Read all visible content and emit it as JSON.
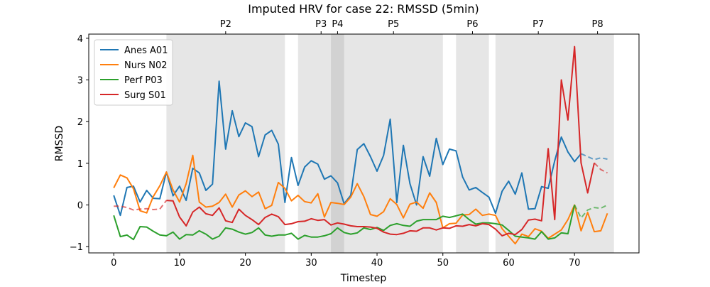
{
  "chart_data": {
    "type": "line",
    "title": "Imputed HRV for case 22: RMSSD (5min)",
    "xlabel": "Timestep",
    "ylabel": "RMSSD",
    "xlim": [
      -3.8,
      79.8
    ],
    "ylim": [
      -1.15,
      4.1
    ],
    "xticks": [
      0,
      10,
      20,
      30,
      40,
      50,
      60,
      70
    ],
    "yticks": [
      -1,
      0,
      1,
      2,
      3,
      4
    ],
    "grid": false,
    "legend_position": "upper-left",
    "phases": [
      {
        "label": "P2",
        "start": 8,
        "end": 26
      },
      {
        "label": "P3",
        "start": 28,
        "end": 35
      },
      {
        "label": "P4",
        "start": 33,
        "end": 35
      },
      {
        "label": "P5",
        "start": 35,
        "end": 50
      },
      {
        "label": "P6",
        "start": 52,
        "end": 57
      },
      {
        "label": "P7",
        "start": 58,
        "end": 71
      },
      {
        "label": "P8",
        "start": 71,
        "end": 76
      }
    ],
    "series": [
      {
        "name": "Anes A01",
        "color": "#1f77b4",
        "x": [
          0,
          1,
          2,
          3,
          4,
          5,
          6,
          7,
          8,
          9,
          10,
          11,
          12,
          13,
          14,
          15,
          16,
          17,
          18,
          19,
          20,
          21,
          22,
          23,
          24,
          25,
          26,
          27,
          28,
          29,
          30,
          31,
          32,
          33,
          34,
          35,
          36,
          37,
          38,
          39,
          40,
          41,
          42,
          43,
          44,
          45,
          46,
          47,
          48,
          49,
          50,
          51,
          52,
          53,
          54,
          55,
          56,
          57,
          58,
          59,
          60,
          61,
          62,
          63,
          64,
          65,
          66,
          67,
          68,
          69,
          70,
          71
        ],
        "values": [
          0.23,
          -0.25,
          0.42,
          0.45,
          0.07,
          0.35,
          0.16,
          0.15,
          0.79,
          0.22,
          0.45,
          0.11,
          0.88,
          0.77,
          0.35,
          0.5,
          2.97,
          1.34,
          2.26,
          1.64,
          1.97,
          1.88,
          1.16,
          1.68,
          1.79,
          1.46,
          0.06,
          1.14,
          0.47,
          0.91,
          1.06,
          0.98,
          0.62,
          0.7,
          0.53,
          0.03,
          0.23,
          1.33,
          1.47,
          1.16,
          0.81,
          1.19,
          2.06,
          0.06,
          1.43,
          0.51,
          0.0,
          1.16,
          0.69,
          1.6,
          0.97,
          1.34,
          1.3,
          0.67,
          0.36,
          0.42,
          0.3,
          0.19,
          -0.2,
          0.33,
          0.57,
          0.26,
          0.77,
          -0.1,
          -0.09,
          0.44,
          0.4,
          1.06,
          1.63,
          1.27,
          1.04,
          1.23
        ],
        "imputed_x": [
          71,
          72,
          73,
          74,
          75
        ],
        "imputed_values": [
          1.23,
          1.16,
          1.09,
          1.13,
          1.1
        ]
      },
      {
        "name": "Nurs N02",
        "color": "#ff7f0e",
        "x": [
          0,
          1,
          2,
          3,
          4,
          5,
          6,
          7,
          8,
          9,
          10,
          11,
          12,
          13,
          14,
          15,
          16,
          17,
          18,
          19,
          20,
          21,
          22,
          23,
          24,
          25,
          26,
          27,
          28,
          29,
          30,
          31,
          32,
          33,
          34,
          35,
          36,
          37,
          38,
          39,
          40,
          41,
          42,
          43,
          44,
          45,
          46,
          47,
          48,
          49,
          50,
          51,
          52,
          53,
          54,
          55,
          56,
          57,
          58,
          59,
          60,
          61,
          62,
          63,
          64,
          65,
          66,
          67,
          68,
          69,
          70,
          71,
          72,
          73,
          74,
          75
        ],
        "values": [
          0.41,
          0.72,
          0.65,
          0.39,
          -0.14,
          -0.19,
          0.2,
          0.46,
          0.79,
          0.36,
          0.07,
          0.51,
          1.19,
          0.07,
          -0.05,
          -0.03,
          0.06,
          0.26,
          -0.05,
          0.24,
          0.34,
          0.2,
          0.31,
          -0.09,
          -0.01,
          0.54,
          0.4,
          0.1,
          0.23,
          0.08,
          0.05,
          0.27,
          -0.29,
          0.06,
          0.04,
          0.01,
          0.19,
          0.51,
          0.2,
          -0.23,
          -0.27,
          -0.16,
          0.15,
          0.01,
          -0.31,
          0.02,
          0.07,
          -0.08,
          0.29,
          0.06,
          -0.55,
          -0.45,
          -0.44,
          -0.24,
          -0.23,
          -0.1,
          -0.25,
          -0.22,
          -0.25,
          -0.57,
          -0.75,
          -0.93,
          -0.7,
          -0.76,
          -0.57,
          -0.63,
          -0.8,
          -0.7,
          -0.6,
          -0.35,
          0.0,
          -0.62,
          -0.18,
          -0.64,
          -0.62,
          -0.2
        ]
      },
      {
        "name": "Perf P03",
        "color": "#2ca02c",
        "x": [
          0,
          1,
          2,
          3,
          4,
          5,
          6,
          7,
          8,
          9,
          10,
          11,
          12,
          13,
          14,
          15,
          16,
          17,
          18,
          19,
          20,
          21,
          22,
          23,
          24,
          25,
          26,
          27,
          28,
          29,
          30,
          31,
          32,
          33,
          34,
          35,
          36,
          37,
          38,
          39,
          40,
          41,
          42,
          43,
          44,
          45,
          46,
          47,
          48,
          49,
          50,
          51,
          52,
          53,
          54,
          55,
          56,
          57,
          58,
          59,
          60,
          61,
          62,
          63,
          64,
          65,
          66,
          67,
          68,
          69,
          70
        ],
        "values": [
          -0.25,
          -0.76,
          -0.72,
          -0.83,
          -0.52,
          -0.53,
          -0.63,
          -0.72,
          -0.74,
          -0.65,
          -0.82,
          -0.71,
          -0.72,
          -0.62,
          -0.7,
          -0.82,
          -0.75,
          -0.55,
          -0.58,
          -0.65,
          -0.7,
          -0.66,
          -0.55,
          -0.72,
          -0.75,
          -0.72,
          -0.72,
          -0.68,
          -0.82,
          -0.73,
          -0.77,
          -0.77,
          -0.74,
          -0.69,
          -0.55,
          -0.66,
          -0.7,
          -0.67,
          -0.55,
          -0.59,
          -0.54,
          -0.61,
          -0.49,
          -0.45,
          -0.49,
          -0.51,
          -0.39,
          -0.35,
          -0.35,
          -0.35,
          -0.27,
          -0.3,
          -0.26,
          -0.22,
          -0.35,
          -0.46,
          -0.43,
          -0.43,
          -0.45,
          -0.48,
          -0.61,
          -0.75,
          -0.77,
          -0.79,
          -0.82,
          -0.64,
          -0.82,
          -0.79,
          -0.67,
          -0.69,
          0.0
        ],
        "imputed_x": [
          70,
          71,
          72,
          73,
          74,
          75
        ],
        "imputed_values": [
          0.0,
          -0.31,
          -0.12,
          -0.06,
          -0.08,
          0.0
        ]
      },
      {
        "name": "Surg S01",
        "color": "#d62728",
        "x": [
          8,
          9,
          10,
          11,
          12,
          13,
          14,
          15,
          16,
          17,
          18,
          19,
          20,
          21,
          22,
          23,
          24,
          25,
          26,
          27,
          28,
          29,
          30,
          31,
          32,
          33,
          34,
          35,
          36,
          37,
          38,
          39,
          40,
          41,
          42,
          43,
          44,
          45,
          46,
          47,
          48,
          49,
          50,
          51,
          52,
          53,
          54,
          55,
          56,
          57,
          58,
          59,
          60,
          61,
          62,
          63,
          64,
          65,
          66,
          67,
          68,
          69,
          70,
          71,
          72,
          73
        ],
        "values": [
          0.11,
          0.1,
          -0.29,
          -0.5,
          -0.17,
          -0.05,
          -0.21,
          -0.25,
          -0.07,
          -0.38,
          -0.42,
          -0.1,
          -0.25,
          -0.35,
          -0.47,
          -0.3,
          -0.22,
          -0.28,
          -0.47,
          -0.45,
          -0.4,
          -0.39,
          -0.33,
          -0.37,
          -0.35,
          -0.48,
          -0.43,
          -0.46,
          -0.5,
          -0.52,
          -0.52,
          -0.53,
          -0.56,
          -0.65,
          -0.7,
          -0.71,
          -0.68,
          -0.62,
          -0.63,
          -0.55,
          -0.55,
          -0.6,
          -0.55,
          -0.56,
          -0.5,
          -0.51,
          -0.47,
          -0.5,
          -0.45,
          -0.47,
          -0.58,
          -0.74,
          -0.68,
          -0.71,
          -0.59,
          -0.36,
          -0.34,
          -0.38,
          1.35,
          -0.35,
          3.0,
          2.04,
          3.8,
          1.01,
          0.29,
          1.01
        ],
        "imputed_x": [
          0,
          1,
          2,
          3,
          4,
          5,
          6,
          7,
          8
        ],
        "imputed_values": [
          -0.03,
          -0.03,
          -0.06,
          -0.12,
          -0.1,
          -0.09,
          -0.11,
          -0.1,
          0.11
        ],
        "imputed_x2": [
          73,
          74,
          75
        ],
        "imputed_values2": [
          1.01,
          0.85,
          0.77
        ]
      }
    ]
  }
}
